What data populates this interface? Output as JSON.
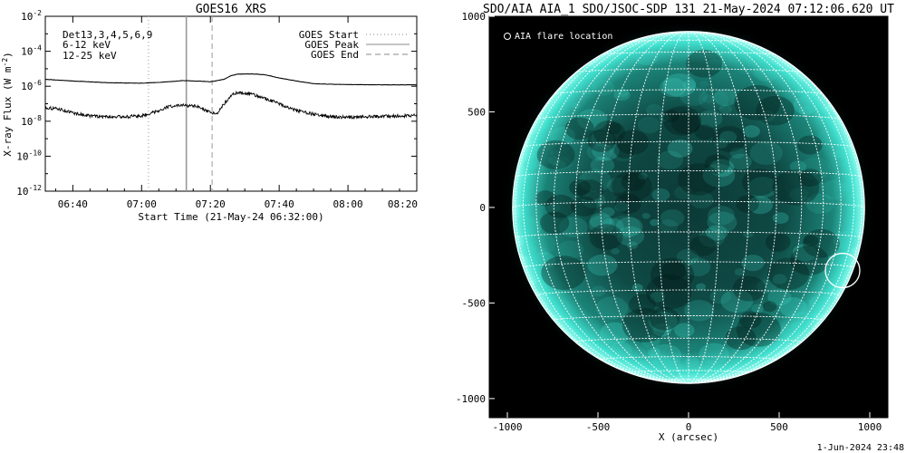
{
  "colors": {
    "low_energy": "#ff00ff",
    "high_energy": "#00cc00",
    "sun_tint": "#1fd6c4",
    "background_sun_panel": "#000000"
  },
  "chart_data": [
    {
      "type": "line",
      "title": "GOES16 XRS",
      "xlabel": "Start Time (21-May-24 06:32:00)",
      "ylabel": "X-ray Flux (W m^-2)",
      "x_tick_labels": [
        "06:40",
        "07:00",
        "07:20",
        "07:40",
        "08:00",
        "08:20"
      ],
      "x_ticks_min": [
        40,
        60,
        80,
        100,
        120,
        140
      ],
      "xlim_min": [
        32,
        140
      ],
      "y_scale": "log",
      "ylim": [
        1e-12,
        0.01
      ],
      "y_tick_base": "10",
      "y_tick_exponents": [
        "-2",
        "-4",
        "-6",
        "-8",
        "-10",
        "-12"
      ],
      "channel_label": "Det13,3,4,5,6,9",
      "series": [
        {
          "name": "6-12 keV",
          "x_min": [
            32,
            40,
            50,
            60,
            66,
            72,
            76,
            80,
            84,
            86,
            88,
            90,
            93,
            96,
            100,
            105,
            110,
            115,
            120,
            130,
            140
          ],
          "y": [
            2.5e-06,
            2e-06,
            1.6e-06,
            1.5e-06,
            1.7e-06,
            2.1e-06,
            2e-06,
            1.8e-06,
            2.5e-06,
            4e-06,
            5e-06,
            5e-06,
            5e-06,
            4.5e-06,
            3e-06,
            2e-06,
            1.4e-06,
            1.3e-06,
            1.25e-06,
            1.2e-06,
            1.2e-06
          ]
        },
        {
          "name": "12-25 keV",
          "x_min": [
            32,
            36,
            40,
            45,
            50,
            55,
            60,
            64,
            68,
            72,
            76,
            80,
            82,
            84,
            86,
            88,
            92,
            96,
            100,
            105,
            110,
            115,
            120,
            125,
            130,
            135,
            140
          ],
          "y": [
            6e-08,
            5e-08,
            3e-08,
            2e-08,
            1.8e-08,
            1.8e-08,
            2e-08,
            3.5e-08,
            7e-08,
            8e-08,
            7e-08,
            3e-08,
            3e-08,
            1e-07,
            3e-07,
            4.5e-07,
            3.5e-07,
            2e-07,
            1e-07,
            4e-08,
            2.5e-08,
            1.8e-08,
            1.7e-08,
            1.8e-08,
            1.9e-08,
            2e-08,
            2.2e-08
          ]
        }
      ],
      "markers": [
        {
          "name": "GOES Start",
          "style": "dotted",
          "x_min": 62
        },
        {
          "name": "GOES Peak",
          "style": "solid",
          "x_min": 73
        },
        {
          "name": "GOES End",
          "style": "dashed",
          "x_min": 80.5
        }
      ],
      "legend_placement": "top-right"
    },
    {
      "type": "image",
      "title": "SDO/AIA AIA_1 SDO/JSOC-SDP 131 21-May-2024 07:12:06.620 UT",
      "xlabel": "X (arcsec)",
      "ylabel": "",
      "x_tick_labels": [
        "-1000",
        "-500",
        "0",
        "500",
        "1000"
      ],
      "y_tick_labels": [
        "1000",
        "500",
        "0",
        "-500",
        "-1000"
      ],
      "xlim": [
        -1100,
        1100
      ],
      "ylim": [
        -1100,
        1000
      ],
      "solar_radius_arcsec": 945,
      "annotation": "AIA flare location",
      "flare_location_arcsec": {
        "x": 850,
        "y": -330
      }
    }
  ],
  "footer_timestamp": "1-Jun-2024 23:48"
}
